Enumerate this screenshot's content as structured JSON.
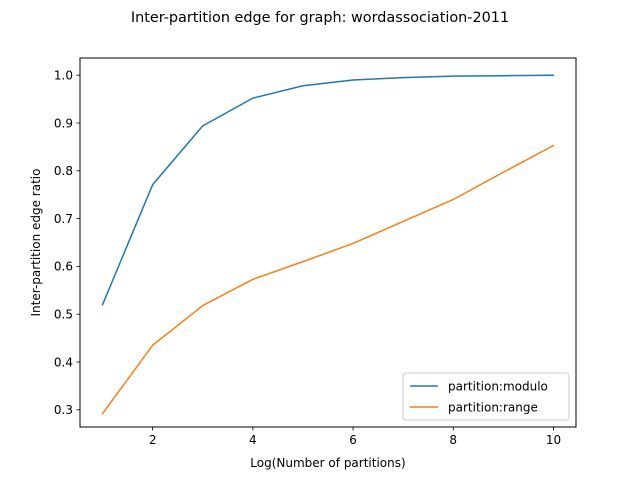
{
  "figure": {
    "title": "Inter-partition edge for graph: wordassociation-2011"
  },
  "chart_data": {
    "type": "line",
    "title": "Inter-partition edge for graph: wordassociation-2011",
    "xlabel": "Log(Number of partitions)",
    "ylabel": "Inter-partition edge ratio",
    "xlim": [
      0.55,
      10.45
    ],
    "ylim": [
      0.264,
      1.036
    ],
    "xticks": [
      2,
      4,
      6,
      8,
      10
    ],
    "yticks": [
      0.3,
      0.4,
      0.5,
      0.6,
      0.7,
      0.8,
      0.9,
      1.0
    ],
    "xtick_labels": [
      "2",
      "4",
      "6",
      "8",
      "10"
    ],
    "ytick_labels": [
      "0.3",
      "0.4",
      "0.5",
      "0.6",
      "0.7",
      "0.8",
      "0.9",
      "1.0"
    ],
    "grid": false,
    "legend_position": "lower-right",
    "x": [
      1,
      2,
      3,
      4,
      5,
      6,
      7,
      8,
      9,
      10
    ],
    "series": [
      {
        "name": "partition:modulo",
        "color": "#1f77b4",
        "values": [
          0.52,
          0.771,
          0.894,
          0.952,
          0.978,
          0.99,
          0.995,
          0.998,
          0.999,
          1.0
        ]
      },
      {
        "name": "partition:range",
        "color": "#ff7f0e",
        "values": [
          0.292,
          0.435,
          0.518,
          0.573,
          0.61,
          0.648,
          0.694,
          0.74,
          0.797,
          0.853
        ]
      }
    ]
  }
}
